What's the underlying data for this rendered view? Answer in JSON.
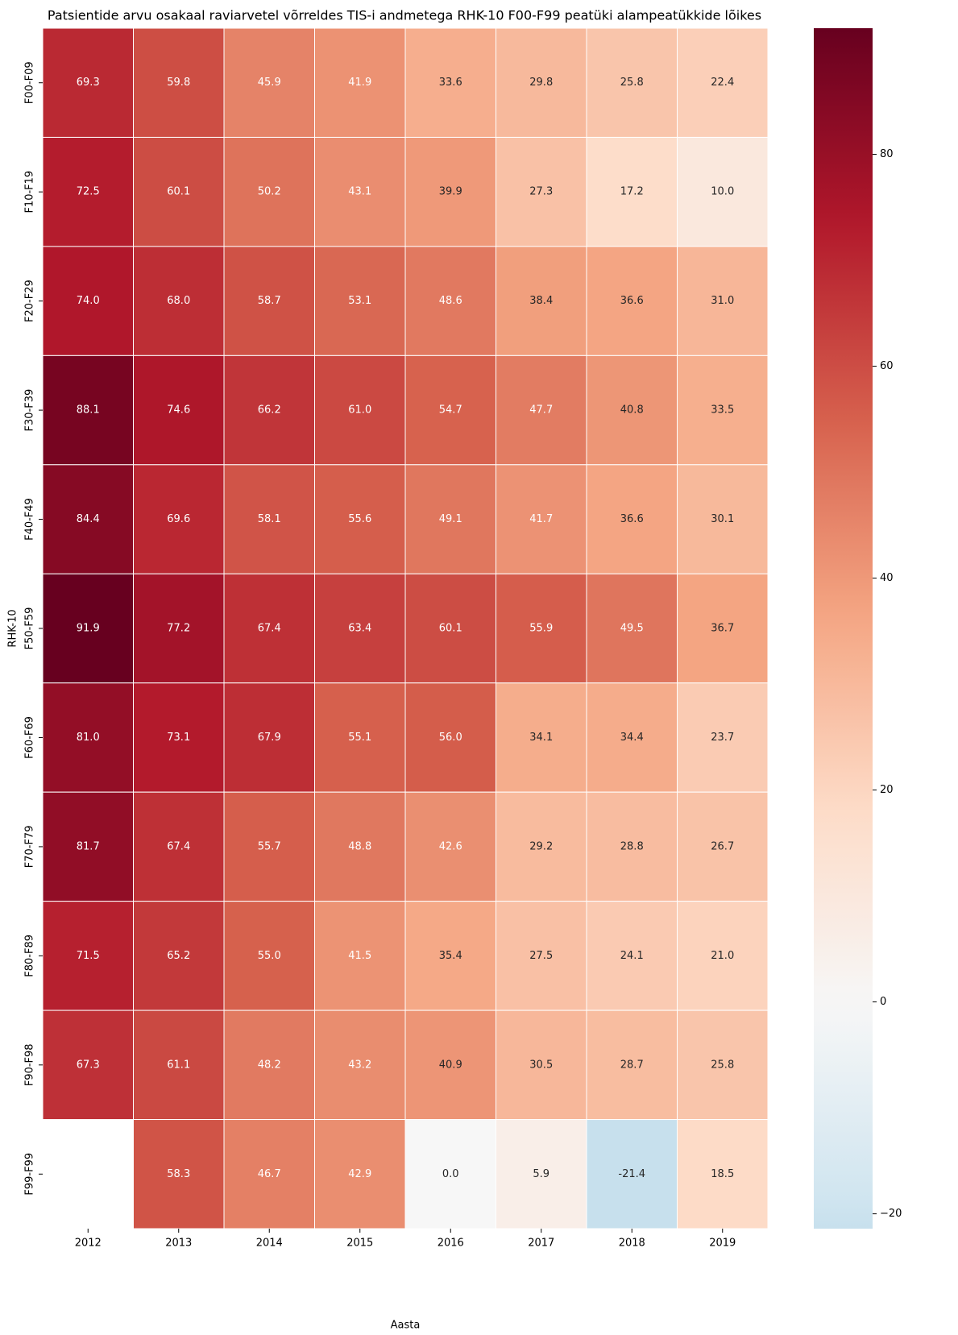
{
  "chart_data": {
    "type": "heatmap",
    "title": "Patsientide arvu osakaal raviarvetel võrreldes TIS-i andmetega RHK-10 F00-F99 peatüki alampeatükkide lõikes",
    "x_label": "Aasta",
    "y_label": "RHK-10",
    "x": [
      "2012",
      "2013",
      "2014",
      "2015",
      "2016",
      "2017",
      "2018",
      "2019"
    ],
    "y": [
      "F00-F09",
      "F10-F19",
      "F20-F29",
      "F30-F39",
      "F40-F49",
      "F50-F59",
      "F60-F69",
      "F70-F79",
      "F80-F89",
      "F90-F98",
      "F99-F99"
    ],
    "values": [
      [
        69.3,
        59.8,
        45.9,
        41.9,
        33.6,
        29.8,
        25.8,
        22.4
      ],
      [
        72.5,
        60.1,
        50.2,
        43.1,
        39.9,
        27.3,
        17.2,
        10.0
      ],
      [
        74.0,
        68.0,
        58.7,
        53.1,
        48.6,
        38.4,
        36.6,
        31.0
      ],
      [
        88.1,
        74.6,
        66.2,
        61.0,
        54.7,
        47.7,
        40.8,
        33.5
      ],
      [
        84.4,
        69.6,
        58.1,
        55.6,
        49.1,
        41.7,
        36.6,
        30.1
      ],
      [
        91.9,
        77.2,
        67.4,
        63.4,
        60.1,
        55.9,
        49.5,
        36.7
      ],
      [
        81.0,
        73.1,
        67.9,
        55.1,
        56.0,
        34.1,
        34.4,
        23.7
      ],
      [
        81.7,
        67.4,
        55.7,
        48.8,
        42.6,
        29.2,
        28.8,
        26.7
      ],
      [
        71.5,
        65.2,
        55.0,
        41.5,
        35.4,
        27.5,
        24.1,
        21.0
      ],
      [
        67.3,
        61.1,
        48.2,
        43.2,
        40.9,
        30.5,
        28.7,
        25.8
      ],
      [
        null,
        58.3,
        46.7,
        42.9,
        0.0,
        5.9,
        -21.4,
        18.5
      ]
    ],
    "value_labels": [
      [
        "69.3",
        "59.8",
        "45.9",
        "41.9",
        "33.6",
        "29.8",
        "25.8",
        "22.4"
      ],
      [
        "72.5",
        "60.1",
        "50.2",
        "43.1",
        "39.9",
        "27.3",
        "17.2",
        "10.0"
      ],
      [
        "74.0",
        "68.0",
        "58.7",
        "53.1",
        "48.6",
        "38.4",
        "36.6",
        "31.0"
      ],
      [
        "88.1",
        "74.6",
        "66.2",
        "61.0",
        "54.7",
        "47.7",
        "40.8",
        "33.5"
      ],
      [
        "84.4",
        "69.6",
        "58.1",
        "55.6",
        "49.1",
        "41.7",
        "36.6",
        "30.1"
      ],
      [
        "91.9",
        "77.2",
        "67.4",
        "63.4",
        "60.1",
        "55.9",
        "49.5",
        "36.7"
      ],
      [
        "81.0",
        "73.1",
        "67.9",
        "55.1",
        "56.0",
        "34.1",
        "34.4",
        "23.7"
      ],
      [
        "81.7",
        "67.4",
        "55.7",
        "48.8",
        "42.6",
        "29.2",
        "28.8",
        "26.7"
      ],
      [
        "71.5",
        "65.2",
        "55.0",
        "41.5",
        "35.4",
        "27.5",
        "24.1",
        "21.0"
      ],
      [
        "67.3",
        "61.1",
        "48.2",
        "43.2",
        "40.9",
        "30.5",
        "28.7",
        "25.8"
      ],
      [
        null,
        "58.3",
        "46.7",
        "42.9",
        "0.0",
        "5.9",
        "-21.4",
        "18.5"
      ]
    ],
    "zlim": [
      -21.4,
      91.9
    ],
    "center": 0,
    "colormap": [
      "#053061",
      "#2166ac",
      "#4393c3",
      "#92c5de",
      "#d1e5f0",
      "#f7f7f7",
      "#fddbc7",
      "#f4a582",
      "#d6604d",
      "#b2182b",
      "#67001f"
    ],
    "zticks": [
      {
        "value": -20,
        "label": "−20"
      },
      0,
      20,
      40,
      60,
      80
    ]
  }
}
